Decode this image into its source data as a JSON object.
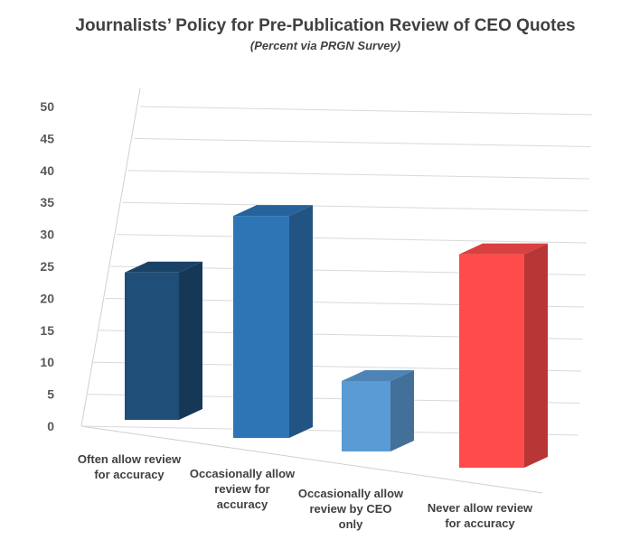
{
  "chart_data": {
    "type": "bar3d",
    "title": "Journalists’ Policy for Pre-Publication Review of CEO Quotes",
    "subtitle": "(Percent via PRGN Survey)",
    "categories": [
      "Often allow review for accuracy",
      "Occasionally allow review for accuracy",
      "Occasionally allow review by CEO only",
      "Never allow review for accuracy"
    ],
    "values": [
      23,
      33,
      10,
      29
    ],
    "colors": [
      "#1f4e79",
      "#2e75b6",
      "#5b9bd5",
      "#ff4b4b"
    ],
    "ylim": [
      0,
      50
    ],
    "yticks": [
      0,
      5,
      10,
      15,
      20,
      25,
      30,
      35,
      40,
      45,
      50
    ],
    "grid": true
  }
}
